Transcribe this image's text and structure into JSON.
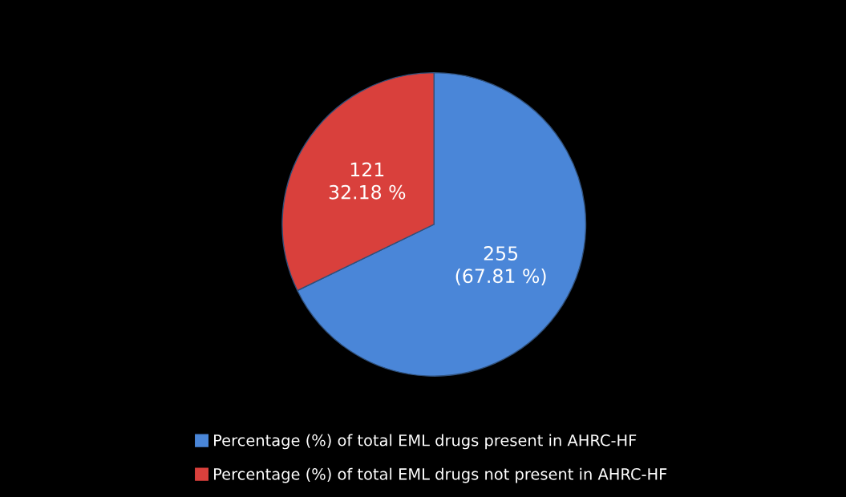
{
  "chart_data": {
    "type": "pie",
    "categories": [
      "Percentage (%) of total EML drugs present in AHRC-HF",
      "Percentage (%) of total EML drugs not present in AHRC-HF"
    ],
    "values": [
      255,
      121
    ],
    "colors": [
      "#4a86d8",
      "#d9403c"
    ],
    "value_labels": [
      "255\n(67.81 %)",
      "121\n32.18 %"
    ],
    "legend": "bottom"
  }
}
